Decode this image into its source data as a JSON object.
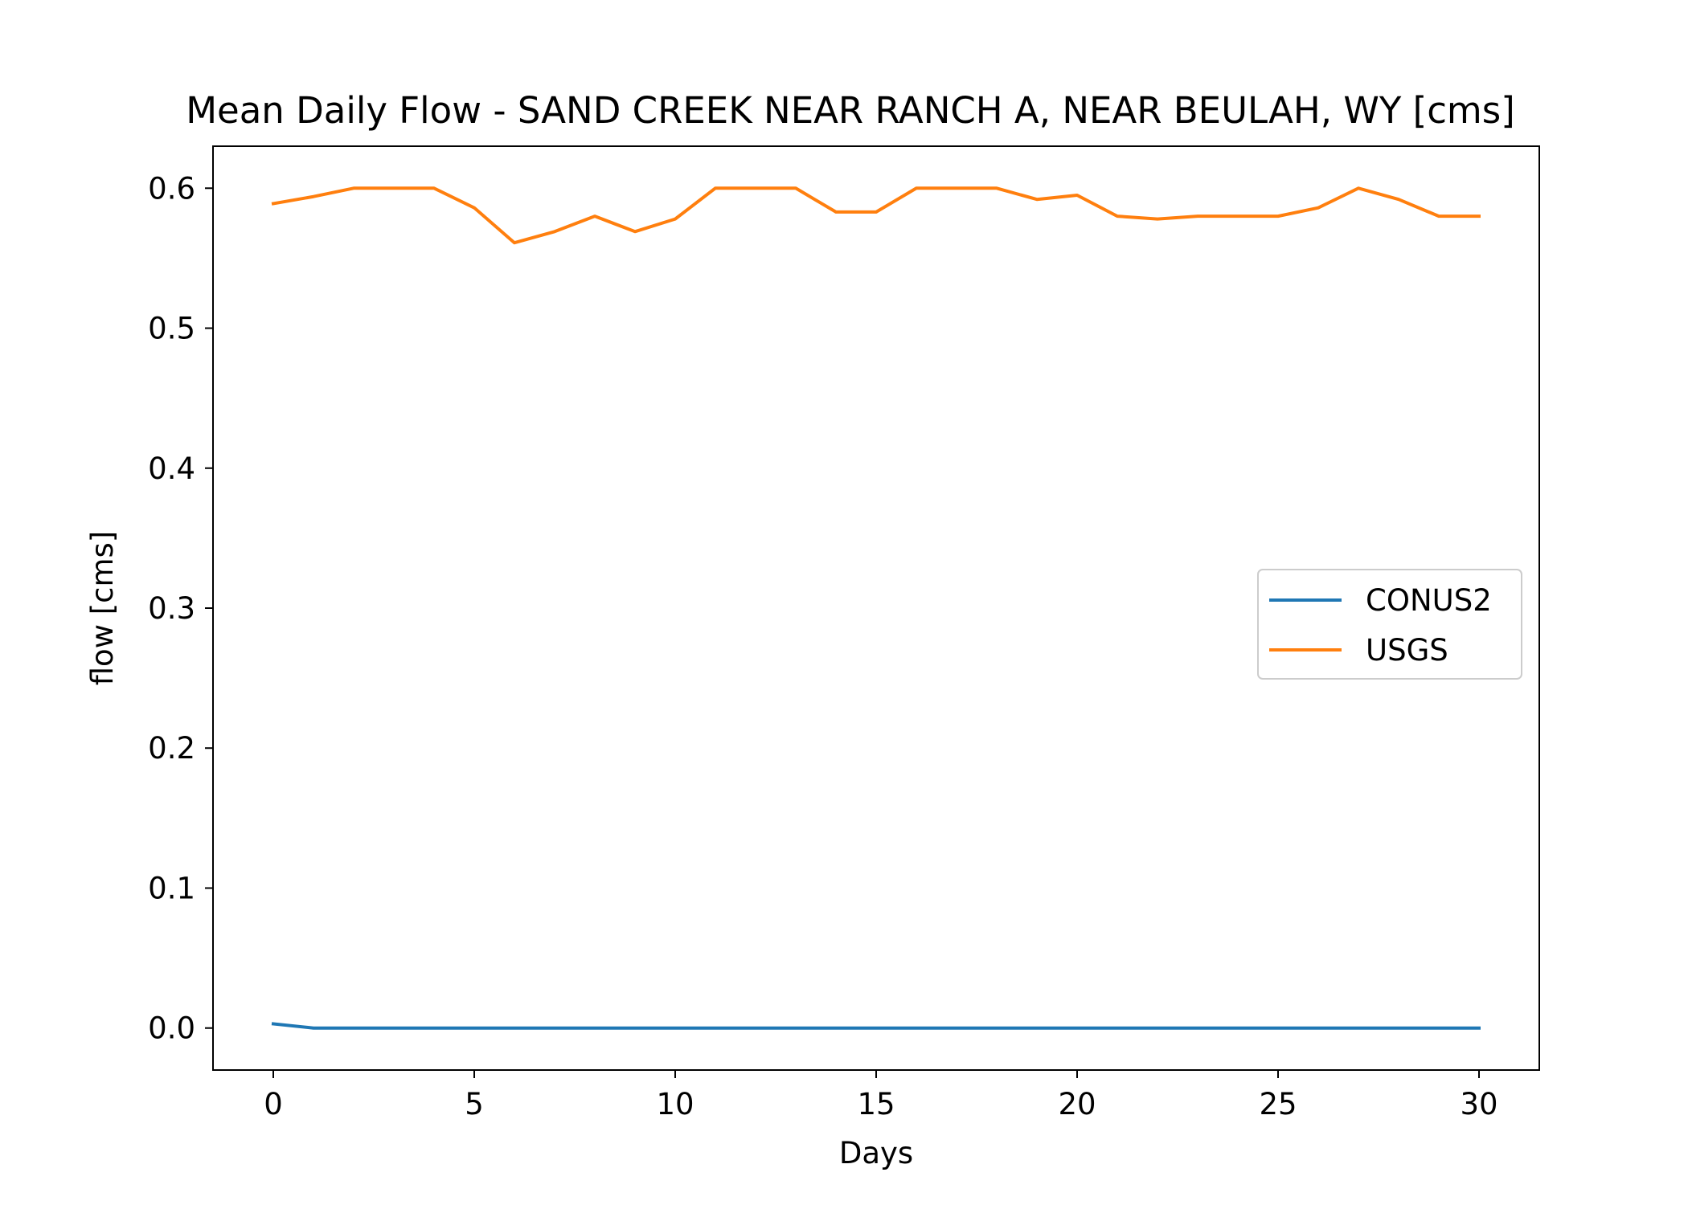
{
  "chart_data": {
    "type": "line",
    "title": "Mean Daily Flow - SAND CREEK NEAR RANCH A, NEAR BEULAH, WY [cms]",
    "xlabel": "Days",
    "ylabel": "flow [cms]",
    "xlim": [
      -1.5,
      31.5
    ],
    "ylim": [
      -0.03,
      0.63
    ],
    "xticks": [
      0,
      5,
      10,
      15,
      20,
      25,
      30
    ],
    "xtick_labels": [
      "0",
      "5",
      "10",
      "15",
      "20",
      "25",
      "30"
    ],
    "yticks": [
      0.0,
      0.1,
      0.2,
      0.3,
      0.4,
      0.5,
      0.6
    ],
    "ytick_labels": [
      "0.0",
      "0.1",
      "0.2",
      "0.3",
      "0.4",
      "0.5",
      "0.6"
    ],
    "grid": false,
    "legend_position": "center-right",
    "x": [
      0,
      1,
      2,
      3,
      4,
      5,
      6,
      7,
      8,
      9,
      10,
      11,
      12,
      13,
      14,
      15,
      16,
      17,
      18,
      19,
      20,
      21,
      22,
      23,
      24,
      25,
      26,
      27,
      28,
      29,
      30
    ],
    "series": [
      {
        "name": "CONUS2",
        "color": "#1f77b4",
        "values": [
          0.003,
          0,
          0,
          0,
          0,
          0,
          0,
          0,
          0,
          0,
          0,
          0,
          0,
          0,
          0,
          0,
          0,
          0,
          0,
          0,
          0,
          0,
          0,
          0,
          0,
          0,
          0,
          0,
          0,
          0,
          0
        ]
      },
      {
        "name": "USGS",
        "color": "#ff7f0e",
        "values": [
          0.589,
          0.594,
          0.6,
          0.6,
          0.6,
          0.586,
          0.561,
          0.569,
          0.58,
          0.569,
          0.578,
          0.6,
          0.6,
          0.6,
          0.583,
          0.583,
          0.6,
          0.6,
          0.6,
          0.592,
          0.595,
          0.58,
          0.578,
          0.58,
          0.58,
          0.58,
          0.586,
          0.6,
          0.592,
          0.58,
          0.58
        ]
      }
    ]
  }
}
